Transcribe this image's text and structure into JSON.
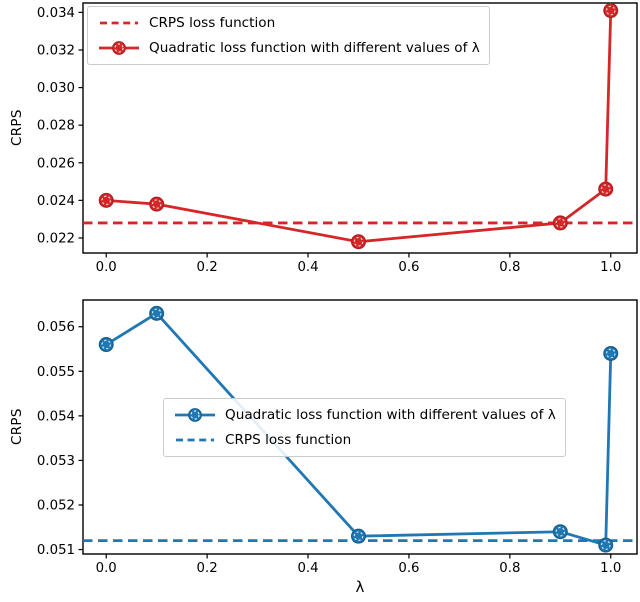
{
  "figure": {
    "background": "#ffffff",
    "text_color": "#000000",
    "spine_color": "#000000"
  },
  "chart_data": [
    {
      "type": "line",
      "panel": "top",
      "title": "",
      "xlabel": "",
      "ylabel": "CRPS",
      "accent_color": "#d62728",
      "xlim": [
        -0.046,
        1.052
      ],
      "ylim": [
        0.0212,
        0.0345
      ],
      "grid": false,
      "legend_position": "upper left",
      "xticks": {
        "values": [
          0.0,
          0.2,
          0.4,
          0.6,
          0.8,
          1.0
        ],
        "labels": [
          "0.0",
          "0.2",
          "0.4",
          "0.6",
          "0.8",
          "1.0"
        ]
      },
      "yticks": {
        "values": [
          0.022,
          0.024,
          0.026,
          0.028,
          0.03,
          0.032,
          0.034
        ],
        "labels": [
          "0.022",
          "0.024",
          "0.026",
          "0.028",
          "0.030",
          "0.032",
          "0.034"
        ]
      },
      "series": [
        {
          "name": "CRPS loss function",
          "kind": "hline",
          "style": "dashed",
          "marker": "none",
          "color": "#d62728",
          "y": 0.0228
        },
        {
          "name": "Quadratic loss function with different values of λ",
          "kind": "line",
          "style": "solid",
          "marker": "circle",
          "color": "#d62728",
          "edge_color": "#b01f22",
          "x": [
            0.0,
            0.1,
            0.5,
            0.9,
            0.99,
            1.0
          ],
          "y": [
            0.024,
            0.0238,
            0.0218,
            0.0228,
            0.0246,
            0.0341
          ]
        }
      ]
    },
    {
      "type": "line",
      "panel": "bottom",
      "title": "",
      "xlabel": "λ",
      "ylabel": "CRPS",
      "accent_color": "#1f77b4",
      "xlim": [
        -0.046,
        1.052
      ],
      "ylim": [
        0.0509,
        0.0566
      ],
      "grid": false,
      "legend_position": "center",
      "xticks": {
        "values": [
          0.0,
          0.2,
          0.4,
          0.6,
          0.8,
          1.0
        ],
        "labels": [
          "0.0",
          "0.2",
          "0.4",
          "0.6",
          "0.8",
          "1.0"
        ]
      },
      "yticks": {
        "values": [
          0.051,
          0.052,
          0.053,
          0.054,
          0.055,
          0.056
        ],
        "labels": [
          "0.051",
          "0.052",
          "0.053",
          "0.054",
          "0.055",
          "0.056"
        ]
      },
      "series": [
        {
          "name": "Quadratic loss function with different values of λ",
          "kind": "line",
          "style": "solid",
          "marker": "circle",
          "color": "#1f77b4",
          "edge_color": "#17608f",
          "x": [
            0.0,
            0.1,
            0.5,
            0.9,
            0.99,
            1.0
          ],
          "y": [
            0.0556,
            0.0563,
            0.0513,
            0.0514,
            0.0511,
            0.0554
          ]
        },
        {
          "name": "CRPS loss function",
          "kind": "hline",
          "style": "dashed",
          "marker": "none",
          "color": "#1f77b4",
          "y": 0.0512
        }
      ]
    }
  ]
}
